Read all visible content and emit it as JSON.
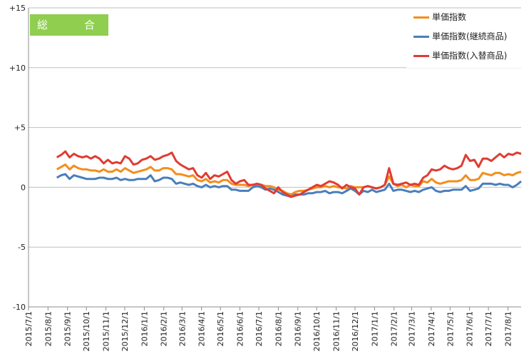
{
  "chart_data": {
    "type": "line",
    "title": "総　合",
    "xlabel": "",
    "ylabel": "",
    "ylim": [
      -10,
      15
    ],
    "y_ticks": [
      "-10",
      "-5",
      "0",
      "+5",
      "+10",
      "+15"
    ],
    "x_labels": [
      "2015/7/1",
      "2015/8/1",
      "2015/9/1",
      "2015/10/1",
      "2015/11/1",
      "2015/12/1",
      "2016/1/1",
      "2016/2/1",
      "2016/3/1",
      "2016/4/1",
      "2016/5/1",
      "2016/6/1",
      "2016/7/1",
      "2016/8/1",
      "2016/9/1",
      "2016/10/1",
      "2016/11/1",
      "2016/12/1",
      "2017/1/1",
      "2017/2/1",
      "2017/3/1",
      "2017/4/1",
      "2017/5/1",
      "2017/6/1",
      "2017/7/1",
      "2017/8/1"
    ],
    "grid": "horizontal",
    "legend_position": "top-right",
    "x_start": "2015/8/15",
    "x_end": "2017/8/22",
    "series": [
      {
        "name": "単価指数",
        "color": "#f28e1c",
        "values": [
          1.5,
          1.7,
          1.9,
          1.5,
          1.8,
          1.6,
          1.5,
          1.5,
          1.4,
          1.4,
          1.3,
          1.5,
          1.3,
          1.3,
          1.5,
          1.3,
          1.6,
          1.4,
          1.2,
          1.3,
          1.4,
          1.5,
          1.7,
          1.4,
          1.4,
          1.6,
          1.6,
          1.5,
          1.1,
          1.1,
          1.0,
          0.9,
          1.0,
          0.6,
          0.5,
          0.7,
          0.4,
          0.5,
          0.4,
          0.6,
          0.6,
          0.3,
          0.2,
          0.2,
          0.2,
          0.1,
          0.2,
          0.3,
          0.2,
          0.1,
          0.1,
          0.0,
          -0.2,
          -0.3,
          -0.5,
          -0.6,
          -0.4,
          -0.3,
          -0.3,
          -0.2,
          -0.1,
          0.0,
          0.0,
          0.1,
          0.0,
          0.1,
          0.0,
          0.0,
          -0.1,
          0.1,
          0.0,
          0.0,
          0.0,
          0.1,
          0.0,
          -0.1,
          0.0,
          0.2,
          0.9,
          0.3,
          0.1,
          0.2,
          0.0,
          0.2,
          0.1,
          0.1,
          0.5,
          0.4,
          0.7,
          0.4,
          0.3,
          0.4,
          0.5,
          0.5,
          0.5,
          0.6,
          1.0,
          0.6,
          0.6,
          0.7,
          1.2,
          1.1,
          1.0,
          1.2,
          1.2,
          1.0,
          1.1,
          1.0,
          1.2,
          1.3
        ]
      },
      {
        "name": "単価指数(継続商品)",
        "color": "#4a7ebb",
        "values": [
          0.8,
          1.0,
          1.1,
          0.7,
          1.0,
          0.9,
          0.8,
          0.7,
          0.7,
          0.7,
          0.8,
          0.8,
          0.7,
          0.7,
          0.8,
          0.6,
          0.7,
          0.6,
          0.6,
          0.7,
          0.7,
          0.7,
          1.0,
          0.5,
          0.6,
          0.8,
          0.8,
          0.7,
          0.3,
          0.4,
          0.3,
          0.2,
          0.3,
          0.1,
          0.0,
          0.2,
          0.0,
          0.1,
          0.0,
          0.1,
          0.1,
          -0.2,
          -0.2,
          -0.3,
          -0.3,
          -0.3,
          0.0,
          0.1,
          0.0,
          -0.2,
          -0.1,
          -0.2,
          -0.4,
          -0.6,
          -0.7,
          -0.8,
          -0.6,
          -0.6,
          -0.6,
          -0.5,
          -0.5,
          -0.4,
          -0.4,
          -0.3,
          -0.5,
          -0.4,
          -0.4,
          -0.5,
          -0.3,
          -0.1,
          -0.3,
          -0.6,
          -0.3,
          -0.4,
          -0.2,
          -0.4,
          -0.3,
          -0.2,
          0.3,
          -0.3,
          -0.2,
          -0.2,
          -0.3,
          -0.4,
          -0.3,
          -0.4,
          -0.2,
          -0.1,
          0.0,
          -0.3,
          -0.4,
          -0.3,
          -0.3,
          -0.2,
          -0.2,
          -0.2,
          0.1,
          -0.3,
          -0.2,
          -0.1,
          0.3,
          0.3,
          0.3,
          0.2,
          0.3,
          0.2,
          0.2,
          0.0,
          0.2,
          0.5
        ]
      },
      {
        "name": "単価指数(入替商品)",
        "color": "#e03c32",
        "values": [
          2.5,
          2.7,
          3.0,
          2.5,
          2.8,
          2.6,
          2.5,
          2.6,
          2.4,
          2.6,
          2.4,
          2.0,
          2.3,
          2.0,
          2.1,
          2.0,
          2.6,
          2.4,
          1.9,
          2.0,
          2.3,
          2.4,
          2.6,
          2.3,
          2.4,
          2.6,
          2.7,
          2.9,
          2.2,
          1.9,
          1.7,
          1.5,
          1.6,
          1.0,
          0.8,
          1.2,
          0.7,
          1.0,
          0.9,
          1.1,
          1.3,
          0.6,
          0.3,
          0.5,
          0.6,
          0.2,
          0.2,
          0.3,
          0.2,
          -0.1,
          -0.3,
          -0.5,
          0.0,
          -0.4,
          -0.6,
          -0.8,
          -0.7,
          -0.6,
          -0.4,
          -0.2,
          0.0,
          0.2,
          0.1,
          0.3,
          0.5,
          0.4,
          0.2,
          -0.1,
          0.2,
          0.0,
          -0.1,
          -0.6,
          0.0,
          0.1,
          0.0,
          -0.1,
          0.0,
          0.2,
          1.6,
          0.3,
          0.2,
          0.3,
          0.4,
          0.2,
          0.3,
          0.2,
          0.8,
          1.0,
          1.5,
          1.4,
          1.5,
          1.8,
          1.6,
          1.5,
          1.6,
          1.8,
          2.7,
          2.2,
          2.3,
          1.7,
          2.4,
          2.4,
          2.2,
          2.5,
          2.8,
          2.5,
          2.8,
          2.7,
          2.9,
          2.8
        ]
      }
    ]
  }
}
